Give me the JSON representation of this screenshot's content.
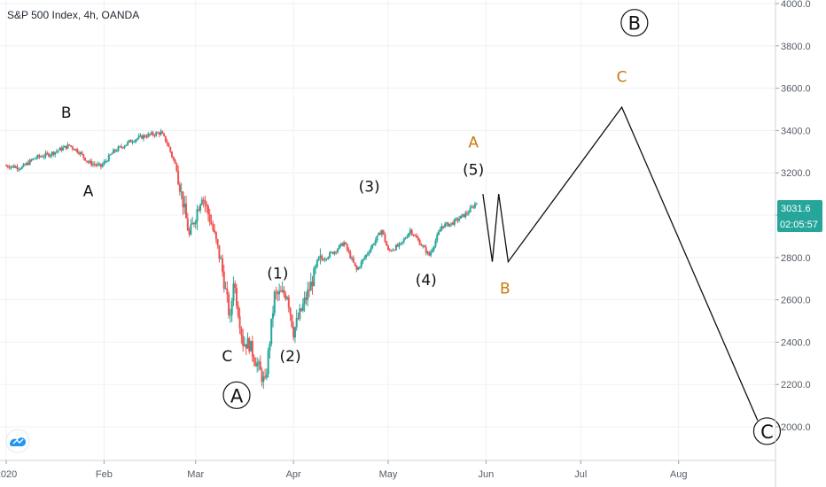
{
  "chart_data": {
    "type": "candlestick",
    "title": "S&P 500 Index, 4h, OANDA",
    "price_axis": {
      "ticks": [
        "4000.0",
        "3800.0",
        "3600.0",
        "3400.0",
        "3200.0",
        "3000.0",
        "2800.0",
        "2600.0",
        "2400.0",
        "2200.0",
        "2000.0"
      ],
      "ylim": [
        1880,
        4000
      ]
    },
    "time_axis": {
      "ticks": [
        "2020",
        "Feb",
        "Mar",
        "Apr",
        "May",
        "Jun",
        "Jul",
        "Aug"
      ],
      "xlim": [
        "2020-01-01",
        "2020-08-30"
      ]
    },
    "grid": true,
    "last_price": {
      "value": "3031.6",
      "countdown": "02:05:57",
      "color": "#26a69a"
    },
    "candle_colors": {
      "up": "#26a69a",
      "down": "#ef5350"
    },
    "price_path": [
      [
        "2020-01-01",
        3234
      ],
      [
        "2020-01-06",
        3225
      ],
      [
        "2020-01-10",
        3270
      ],
      [
        "2020-01-15",
        3290
      ],
      [
        "2020-01-21",
        3330
      ],
      [
        "2020-01-24",
        3300
      ],
      [
        "2020-01-27",
        3250
      ],
      [
        "2020-01-31",
        3230
      ],
      [
        "2020-02-04",
        3300
      ],
      [
        "2020-02-10",
        3355
      ],
      [
        "2020-02-14",
        3375
      ],
      [
        "2020-02-19",
        3390
      ],
      [
        "2020-02-21",
        3340
      ],
      [
        "2020-02-24",
        3220
      ],
      [
        "2020-02-27",
        2980
      ],
      [
        "2020-02-28",
        2900
      ],
      [
        "2020-03-03",
        3100
      ],
      [
        "2020-03-06",
        2960
      ],
      [
        "2020-03-09",
        2780
      ],
      [
        "2020-03-12",
        2500
      ],
      [
        "2020-03-13",
        2700
      ],
      [
        "2020-03-16",
        2400
      ],
      [
        "2020-03-18",
        2390
      ],
      [
        "2020-03-23",
        2200
      ],
      [
        "2020-03-26",
        2620
      ],
      [
        "2020-03-30",
        2630
      ],
      [
        "2020-04-01",
        2450
      ],
      [
        "2020-04-06",
        2650
      ],
      [
        "2020-04-09",
        2780
      ],
      [
        "2020-04-14",
        2830
      ],
      [
        "2020-04-17",
        2870
      ],
      [
        "2020-04-21",
        2740
      ],
      [
        "2020-04-29",
        2930
      ],
      [
        "2020-05-01",
        2830
      ],
      [
        "2020-05-05",
        2860
      ],
      [
        "2020-05-08",
        2930
      ],
      [
        "2020-05-14",
        2810
      ],
      [
        "2020-05-18",
        2950
      ],
      [
        "2020-05-21",
        2960
      ],
      [
        "2020-05-26",
        3010
      ],
      [
        "2020-05-29",
        3060
      ]
    ],
    "projection": [
      [
        "2020-05-31",
        3100
      ],
      [
        "2020-06-03",
        2780
      ],
      [
        "2020-06-05",
        3100
      ],
      [
        "2020-06-08",
        2780
      ],
      [
        "2020-07-14",
        3510
      ],
      [
        "2020-08-26",
        2030
      ]
    ],
    "annotations": [
      {
        "text": "B",
        "date": "2020-01-20",
        "price": 3460,
        "style": "black"
      },
      {
        "text": "A",
        "date": "2020-01-27",
        "price": 3090,
        "style": "black"
      },
      {
        "text": "C",
        "date": "2020-03-11",
        "price": 2310,
        "style": "black"
      },
      {
        "text": "A",
        "date": "2020-03-14",
        "price": 2120,
        "style": "circle"
      },
      {
        "text": "(1)",
        "date": "2020-03-27",
        "price": 2700,
        "style": "black"
      },
      {
        "text": "(2)",
        "date": "2020-03-31",
        "price": 2310,
        "style": "black"
      },
      {
        "text": "(3)",
        "date": "2020-04-25",
        "price": 3110,
        "style": "black"
      },
      {
        "text": "(4)",
        "date": "2020-05-13",
        "price": 2670,
        "style": "black"
      },
      {
        "text": "(5)",
        "date": "2020-05-28",
        "price": 3190,
        "style": "black"
      },
      {
        "text": "A",
        "date": "2020-05-28",
        "price": 3320,
        "style": "orange"
      },
      {
        "text": "B",
        "date": "2020-06-07",
        "price": 2630,
        "style": "orange"
      },
      {
        "text": "C",
        "date": "2020-07-14",
        "price": 3630,
        "style": "orange"
      },
      {
        "text": "B",
        "date": "2020-07-18",
        "price": 3880,
        "style": "circle"
      },
      {
        "text": "C",
        "date": "2020-08-29",
        "price": 1950,
        "style": "circle"
      }
    ]
  }
}
